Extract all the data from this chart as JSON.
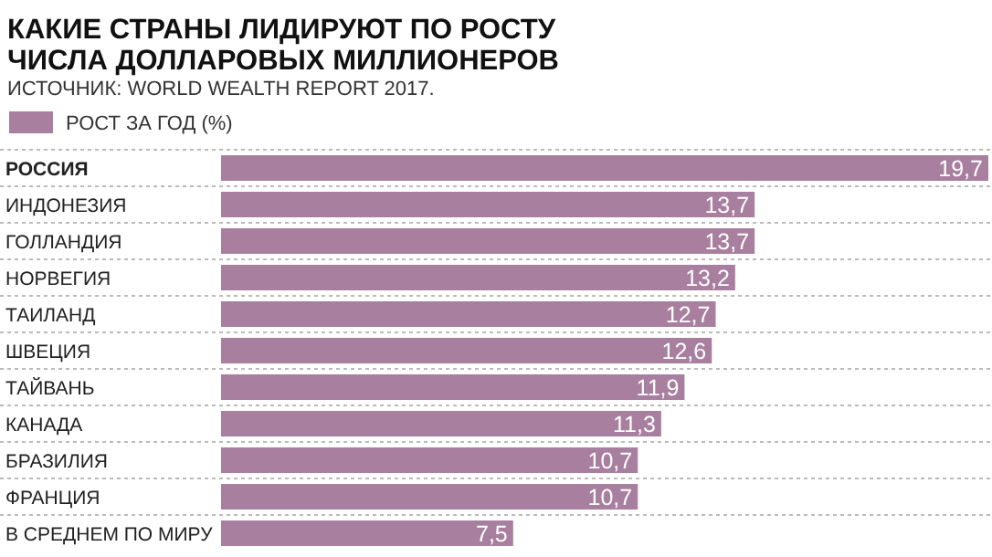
{
  "chart_data": {
    "type": "bar",
    "orientation": "horizontal",
    "title": "КАКИЕ СТРАНЫ ЛИДИРУЮТ ПО РОСТУ ЧИСЛА ДОЛЛАРОВЫХ МИЛЛИОНЕРОВ",
    "subtitle": "ИСТОЧНИК: WORLD WEALTH REPORT 2017.",
    "categories": [
      "РОССИЯ",
      "ИНДОНЕЗИЯ",
      "ГОЛЛАНДИЯ",
      "НОРВЕГИЯ",
      "ТАИЛАНД",
      "ШВЕЦИЯ",
      "ТАЙВАНЬ",
      "КАНАДА",
      "БРАЗИЛИЯ",
      "ФРАНЦИЯ",
      "В СРЕДНЕМ ПО МИРУ"
    ],
    "series": [
      {
        "name": "РОСТ ЗА ГОД (%)",
        "color": "#a87f9f",
        "values": [
          19.7,
          13.7,
          13.7,
          13.2,
          12.7,
          12.6,
          11.9,
          11.3,
          10.7,
          10.7,
          7.5
        ],
        "value_labels": [
          "19,7",
          "13,7",
          "13,7",
          "13,2",
          "12,7",
          "12,6",
          "11,9",
          "11,3",
          "10,7",
          "10,7",
          "7,5"
        ]
      }
    ],
    "legend": "top left",
    "grid": true
  }
}
